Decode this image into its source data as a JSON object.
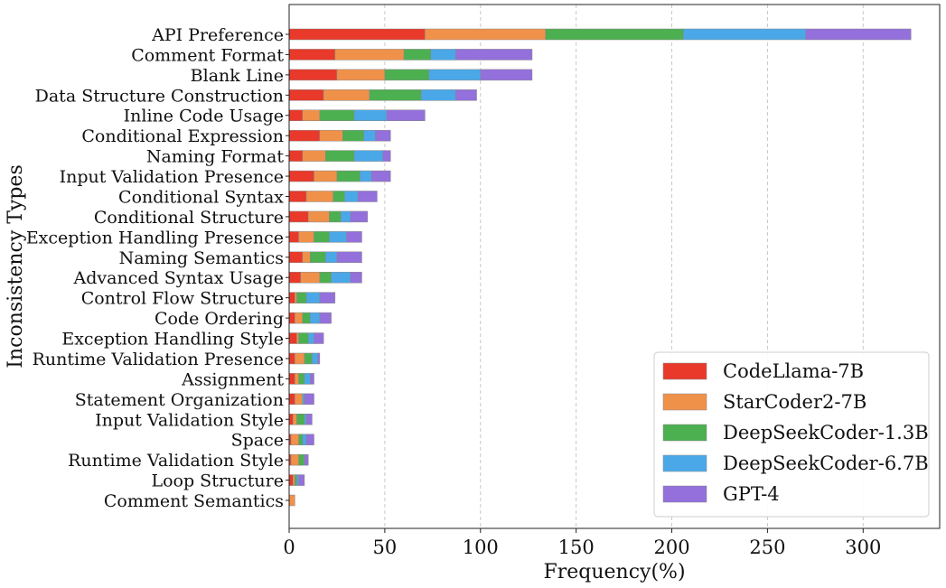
{
  "chart_data": {
    "type": "bar",
    "orientation": "horizontal",
    "stacked": true,
    "title": "",
    "xlabel": "Frequency(%)",
    "ylabel": "Inconsistency Types",
    "xlim": [
      0,
      340
    ],
    "xticks": [
      0,
      50,
      100,
      150,
      200,
      250,
      300
    ],
    "grid": "vertical-dashed",
    "legend_position": "bottom-right",
    "categories": [
      "API Preference",
      "Comment Format",
      "Blank Line",
      "Data Structure Construction",
      "Inline Code Usage",
      "Conditional Expression",
      "Naming Format",
      "Input Validation Presence",
      "Conditional Syntax",
      "Conditional Structure",
      "Exception Handling Presence",
      "Naming Semantics",
      "Advanced Syntax Usage",
      "Control Flow Structure",
      "Code Ordering",
      "Exception Handling Style",
      "Runtime Validation Presence",
      "Assignment",
      "Statement Organization",
      "Input Validation Style",
      "Space",
      "Runtime Validation Style",
      "Loop Structure",
      "Comment Semantics"
    ],
    "series": [
      {
        "name": "CodeLlama-7B",
        "color": "#e8392a",
        "values": [
          71,
          24,
          25,
          18,
          7,
          16,
          7,
          13,
          9,
          10,
          5,
          7,
          6,
          3,
          3,
          4,
          3,
          3,
          3,
          2,
          1,
          1,
          2,
          0
        ]
      },
      {
        "name": "StarCoder2-7B",
        "color": "#f0914a",
        "values": [
          63,
          36,
          25,
          24,
          9,
          12,
          12,
          12,
          14,
          11,
          8,
          4,
          10,
          1,
          4,
          1,
          5,
          2,
          4,
          2,
          4,
          4,
          1,
          3
        ]
      },
      {
        "name": "DeepSeekCoder-1.3B",
        "color": "#4caf50",
        "values": [
          72,
          14,
          23,
          27,
          18,
          11,
          15,
          12,
          6,
          6,
          8,
          8,
          6,
          5,
          4,
          5,
          4,
          3,
          0,
          4,
          2,
          3,
          1,
          0
        ]
      },
      {
        "name": "DeepSeekCoder-6.7B",
        "color": "#4aa8e8",
        "values": [
          64,
          13,
          27,
          18,
          17,
          6,
          15,
          6,
          7,
          5,
          9,
          6,
          10,
          7,
          5,
          3,
          3,
          3,
          1,
          1,
          2,
          0,
          1,
          0
        ]
      },
      {
        "name": "GPT-4",
        "color": "#9370db",
        "values": [
          55,
          40,
          27,
          11,
          20,
          8,
          4,
          10,
          10,
          9,
          8,
          13,
          6,
          8,
          6,
          5,
          1,
          2,
          5,
          3,
          4,
          2,
          3,
          0
        ]
      }
    ]
  }
}
